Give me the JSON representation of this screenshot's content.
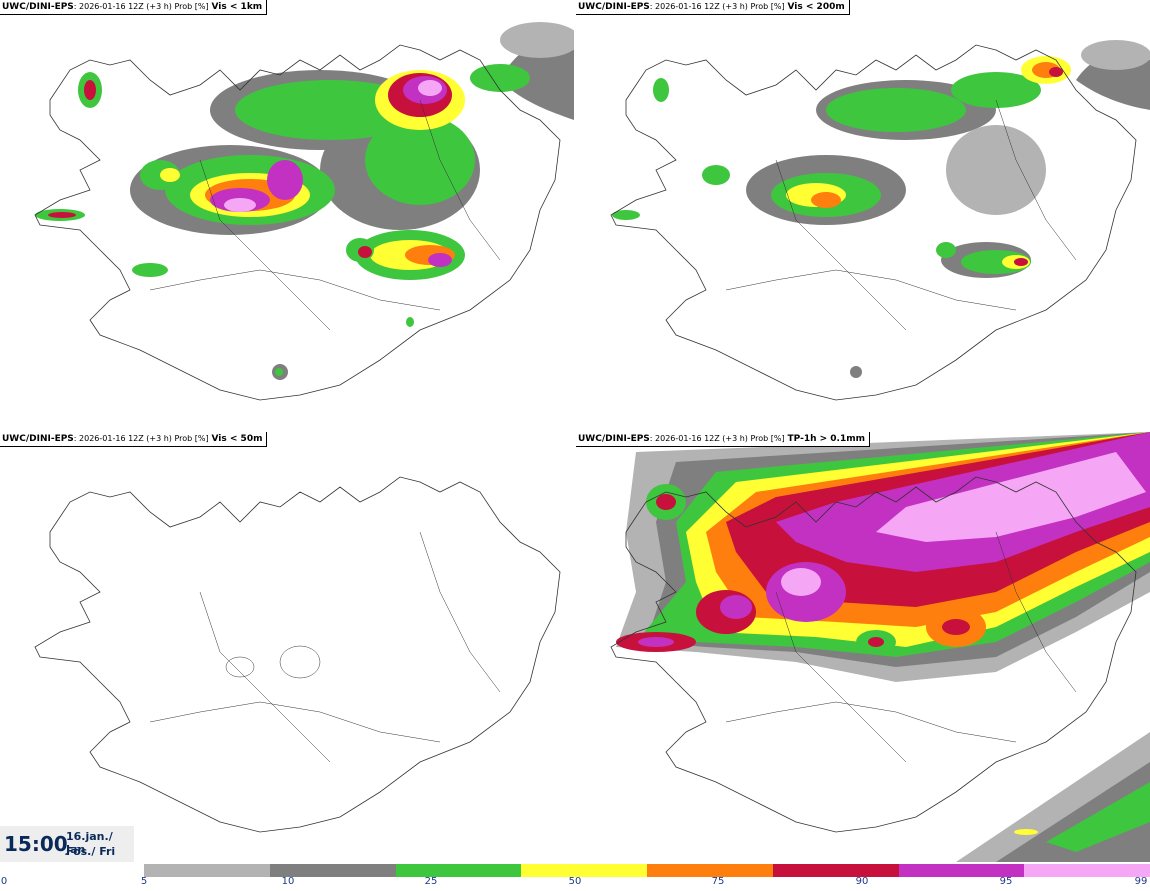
{
  "panels": [
    {
      "model": "UWC/DINI-EPS",
      "meta": ": 2026-01-16 12Z (+3 h) Prob [%]",
      "variable": "Vis < 1km"
    },
    {
      "model": "UWC/DINI-EPS",
      "meta": ": 2026-01-16 12Z (+3 h) Prob [%]",
      "variable": "Vis < 200m"
    },
    {
      "model": "UWC/DINI-EPS",
      "meta": ": 2026-01-16 12Z (+3 h) Prob [%]",
      "variable": "Vis < 50m"
    },
    {
      "model": "UWC/DINI-EPS",
      "meta": ": 2026-01-16 12Z (+3 h) Prob [%]",
      "variable": "TP-1h > 0.1mm"
    }
  ],
  "timestamp": {
    "time": "15:00",
    "date_line1": "16.jan./ Jan",
    "date_line2": "Fös./ Fri"
  },
  "colorbar": {
    "ticks": [
      "0",
      "5",
      "10",
      "25",
      "50",
      "75",
      "90",
      "95",
      "99"
    ],
    "colors": [
      "#b3b3b3",
      "#7f7f7f",
      "#3fc63f",
      "#ffff33",
      "#ff7f0e",
      "#c8103c",
      "#c231c2",
      "#f5a6f5"
    ]
  }
}
